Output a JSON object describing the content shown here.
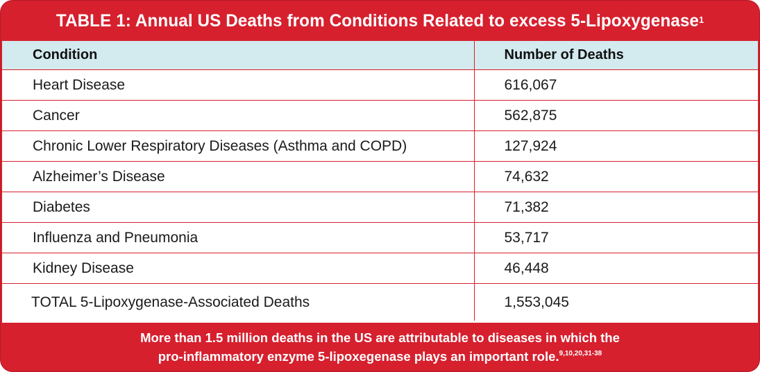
{
  "table": {
    "title": "TABLE 1: Annual US Deaths from Conditions Related to excess 5-Lipoxygenase",
    "title_superscript": "1",
    "columns": [
      "Condition",
      "Number of Deaths"
    ],
    "rows": [
      {
        "condition": "Heart Disease",
        "deaths": "616,067"
      },
      {
        "condition": "Cancer",
        "deaths": "562,875"
      },
      {
        "condition": "Chronic Lower Respiratory Diseases (Asthma and COPD)",
        "deaths": "127,924"
      },
      {
        "condition": "Alzheimer’s Disease",
        "deaths": "74,632"
      },
      {
        "condition": "Diabetes",
        "deaths": "71,382"
      },
      {
        "condition": "Influenza and Pneumonia",
        "deaths": "53,717"
      },
      {
        "condition": "Kidney Disease",
        "deaths": "46,448"
      }
    ],
    "total": {
      "condition": "TOTAL 5-Lipoxygenase-Associated Deaths",
      "deaths": "1,553,045"
    }
  },
  "footer": {
    "line1": "More than 1.5 million deaths in the US are attributable to diseases in which the",
    "line2": "pro-inflammatory enzyme 5-lipoxegenase plays an important role.",
    "superscript": "9,10,20,31-38"
  },
  "colors": {
    "frame_red": "#d6202e",
    "header_bg": "#d3eaee",
    "body_bg": "#ffffff"
  }
}
